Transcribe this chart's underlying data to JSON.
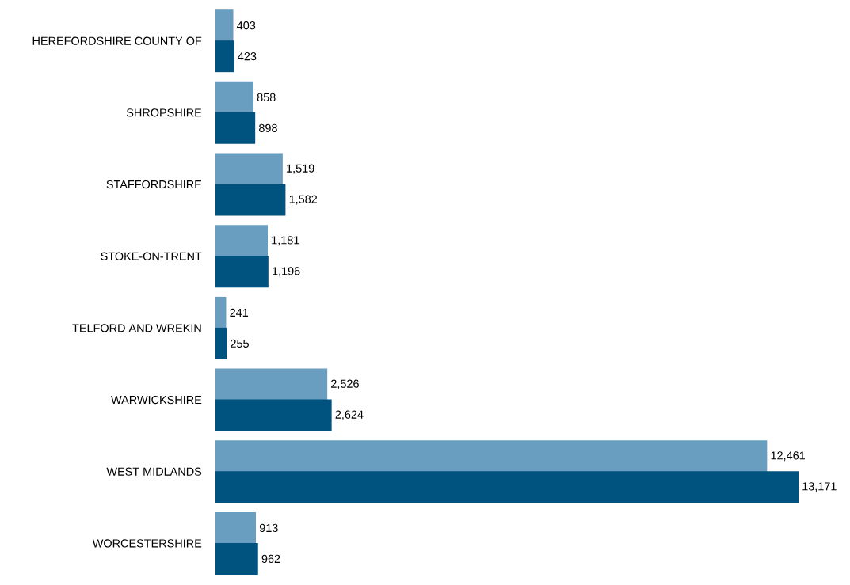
{
  "chart_data": {
    "type": "bar",
    "orientation": "horizontal",
    "categories": [
      "HEREFORDSHIRE COUNTY OF",
      "SHROPSHIRE",
      "STAFFORDSHIRE",
      "STOKE-ON-TRENT",
      "TELFORD AND WREKIN",
      "WARWICKSHIRE",
      "WEST MIDLANDS",
      "WORCESTERSHIRE"
    ],
    "series": [
      {
        "color": "#6a9ec0",
        "values": [
          403,
          858,
          1519,
          1181,
          241,
          2526,
          12461,
          913
        ],
        "value_labels": [
          "403",
          "858",
          "1,519",
          "1,181",
          "241",
          "2,526",
          "12,461",
          "913"
        ]
      },
      {
        "color": "#00527f",
        "values": [
          423,
          898,
          1582,
          1196,
          255,
          2624,
          13171,
          962
        ],
        "value_labels": [
          "423",
          "898",
          "1,582",
          "1,196",
          "255",
          "2,624",
          "13,171",
          "962"
        ]
      }
    ]
  }
}
